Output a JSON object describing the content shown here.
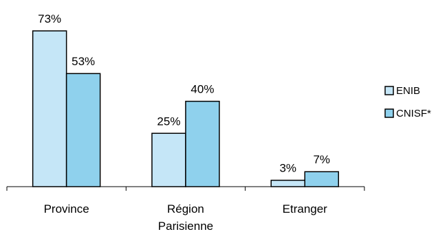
{
  "chart_data": {
    "type": "bar",
    "categories": [
      "Province",
      "Région\nParisienne",
      "Etranger"
    ],
    "series": [
      {
        "name": "ENIB",
        "values": [
          73,
          25,
          3
        ],
        "labels": [
          "73%",
          "25%",
          "3%"
        ],
        "color": "#c5e6f7"
      },
      {
        "name": "CNISF*",
        "values": [
          53,
          40,
          7
        ],
        "labels": [
          "53%",
          "40%",
          "7%"
        ],
        "color": "#8fd1ed"
      }
    ],
    "ylim": [
      0,
      73
    ],
    "grid": false,
    "legend_position": "right"
  }
}
